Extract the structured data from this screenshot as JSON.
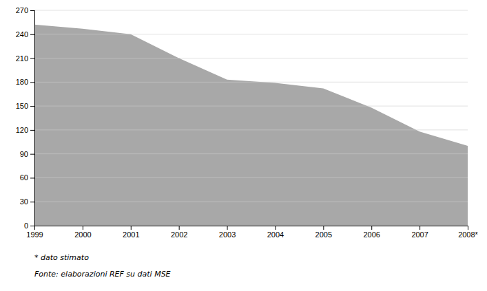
{
  "chart_data": {
    "type": "area",
    "x": [
      1999,
      2000,
      2001,
      2002,
      2003,
      2004,
      2005,
      2006,
      2007,
      2008
    ],
    "values": [
      252,
      247,
      240,
      210,
      183,
      179,
      172,
      148,
      118,
      100
    ],
    "color": "#a8a8a8",
    "xlim": [
      1999,
      2008
    ],
    "xticks": [
      1999,
      2000,
      2001,
      2002,
      2003,
      2004,
      2005,
      2006,
      2007,
      {
        "value": 2008,
        "label": "2008*"
      }
    ],
    "ylim": [
      0,
      270
    ],
    "yticks": [
      0,
      30,
      60,
      90,
      120,
      150,
      180,
      210,
      240,
      270
    ],
    "grid": true,
    "annotations": [
      "* dato stimato",
      "Fonte: elaborazioni REF su dati MSE"
    ]
  }
}
